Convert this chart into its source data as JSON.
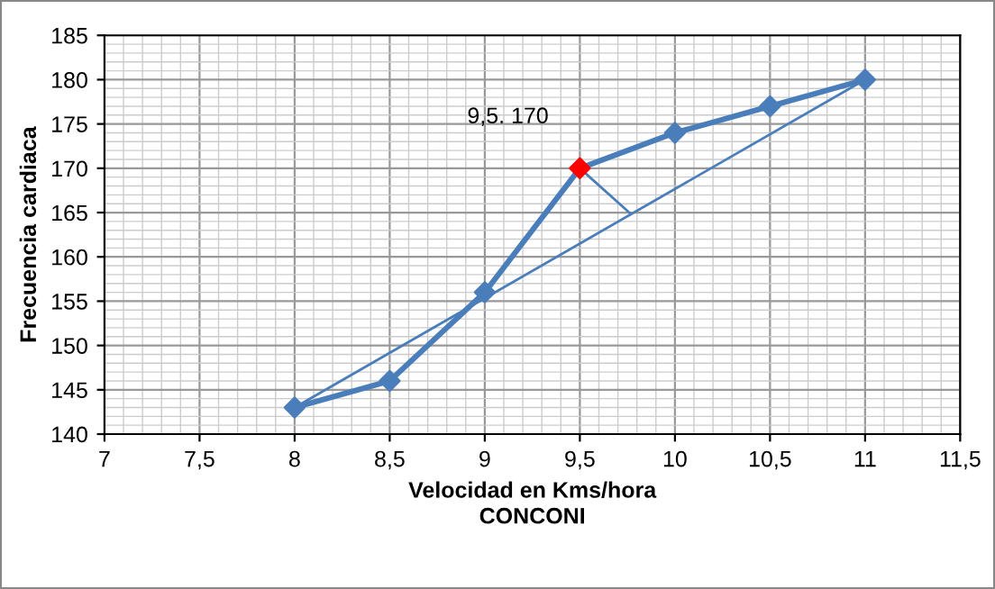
{
  "chart_data": {
    "type": "line",
    "xlabel": "Velocidad en Kms/hora\nCONCONI",
    "ylabel": "Frecuencia cardiaca",
    "xlim": [
      7,
      11.5
    ],
    "xticks": [
      7,
      {
        "value": 7.5,
        "label": "7,5"
      },
      8,
      {
        "value": 8.5,
        "label": "8,5"
      },
      9,
      {
        "value": 9.5,
        "label": "9,5"
      },
      10,
      {
        "value": 10.5,
        "label": "10,5"
      },
      11,
      {
        "value": 11.5,
        "label": "11,5"
      }
    ],
    "ylim": [
      140,
      185
    ],
    "yticks": [
      140,
      145,
      150,
      155,
      160,
      165,
      170,
      175,
      180,
      185
    ],
    "grid": true,
    "legend": false,
    "marker": "diamond",
    "line_style": "solid",
    "series": [
      {
        "color": "#4a7ebb",
        "x": [
          8,
          8.5,
          9,
          9.5,
          10,
          10.5,
          11
        ],
        "values": [
          143,
          146,
          156,
          170,
          174,
          177,
          180
        ],
        "colors": [
          "#4a7ebb",
          "#4a7ebb",
          "#4a7ebb",
          "#ff0000",
          "#4a7ebb",
          "#4a7ebb",
          "#4a7ebb"
        ]
      },
      {
        "color": "#4a7ebb",
        "x": [
          8,
          11
        ],
        "values": [
          143,
          180
        ],
        "marker": "none"
      },
      {
        "color": "#4a7ebb",
        "x": [
          9.5,
          9.76
        ],
        "values": [
          170,
          165
        ],
        "marker": "none"
      }
    ],
    "annotations": [
      {
        "text": "9,5. 170",
        "x": 9.5,
        "y": 170
      }
    ]
  }
}
